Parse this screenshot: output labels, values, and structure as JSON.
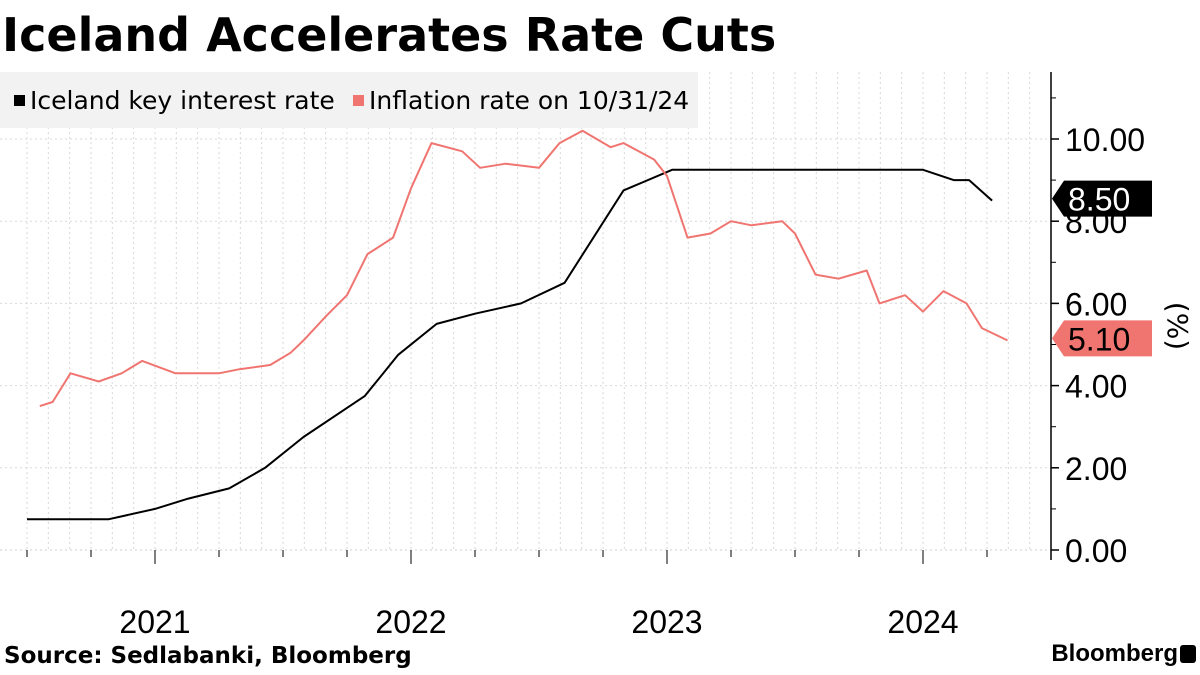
{
  "chart_data": {
    "type": "line",
    "title": "Iceland Accelerates Rate Cuts",
    "ylabel": "(%)",
    "ylim": [
      0,
      11.5
    ],
    "yticks": [
      0,
      2,
      4,
      6,
      8,
      10
    ],
    "ytick_labels": [
      "0.00",
      "2.00",
      "4.00",
      "6.00",
      "8.00",
      "10.00"
    ],
    "xlim": [
      2020.5,
      2024.75
    ],
    "xticks": [
      2021,
      2022,
      2023,
      2024
    ],
    "xtick_labels": [
      "2021",
      "2022",
      "2023",
      "2024"
    ],
    "legend_position": "top-left",
    "series": [
      {
        "name": "Iceland key interest rate",
        "color": "#000000",
        "last_value_label": "8.50",
        "x": [
          2020.5,
          2020.82,
          2021.0,
          2021.13,
          2021.29,
          2021.43,
          2021.58,
          2021.82,
          2021.95,
          2022.1,
          2022.25,
          2022.43,
          2022.6,
          2022.83,
          2023.02,
          2023.12,
          2023.5,
          2024.0,
          2024.12,
          2024.18,
          2024.27
        ],
        "y": [
          0.75,
          0.75,
          1.0,
          1.25,
          1.5,
          2.0,
          2.75,
          3.75,
          4.75,
          5.5,
          5.75,
          6.0,
          6.5,
          8.75,
          9.25,
          9.25,
          9.25,
          9.25,
          9.0,
          9.0,
          8.5
        ]
      },
      {
        "name": "Inflation rate on 10/31/24",
        "color": "#f07570",
        "last_value_label": "5.10",
        "x": [
          2020.55,
          2020.6,
          2020.67,
          2020.78,
          2020.87,
          2020.95,
          2021.08,
          2021.2,
          2021.25,
          2021.33,
          2021.45,
          2021.53,
          2021.58,
          2021.67,
          2021.75,
          2021.83,
          2021.93,
          2022.0,
          2022.08,
          2022.2,
          2022.27,
          2022.37,
          2022.5,
          2022.58,
          2022.67,
          2022.78,
          2022.83,
          2022.95,
          2023.0,
          2023.08,
          2023.17,
          2023.25,
          2023.33,
          2023.45,
          2023.5,
          2023.58,
          2023.67,
          2023.78,
          2023.83,
          2023.93,
          2024.0,
          2024.08,
          2024.17,
          2024.23,
          2024.33
        ],
        "y": [
          3.5,
          3.6,
          4.3,
          4.1,
          4.3,
          4.6,
          4.3,
          4.3,
          4.3,
          4.4,
          4.5,
          4.8,
          5.1,
          5.7,
          6.2,
          7.2,
          7.6,
          8.8,
          9.9,
          9.7,
          9.3,
          9.4,
          9.3,
          9.9,
          10.2,
          9.8,
          9.9,
          9.5,
          9.1,
          7.6,
          7.7,
          8.0,
          7.9,
          8.0,
          7.7,
          6.7,
          6.6,
          6.8,
          6.0,
          6.2,
          5.8,
          6.3,
          6.0,
          5.4,
          5.1
        ]
      }
    ]
  },
  "source_text": "Source: Sedlabanki, Bloomberg",
  "brand_text": "Bloomberg"
}
